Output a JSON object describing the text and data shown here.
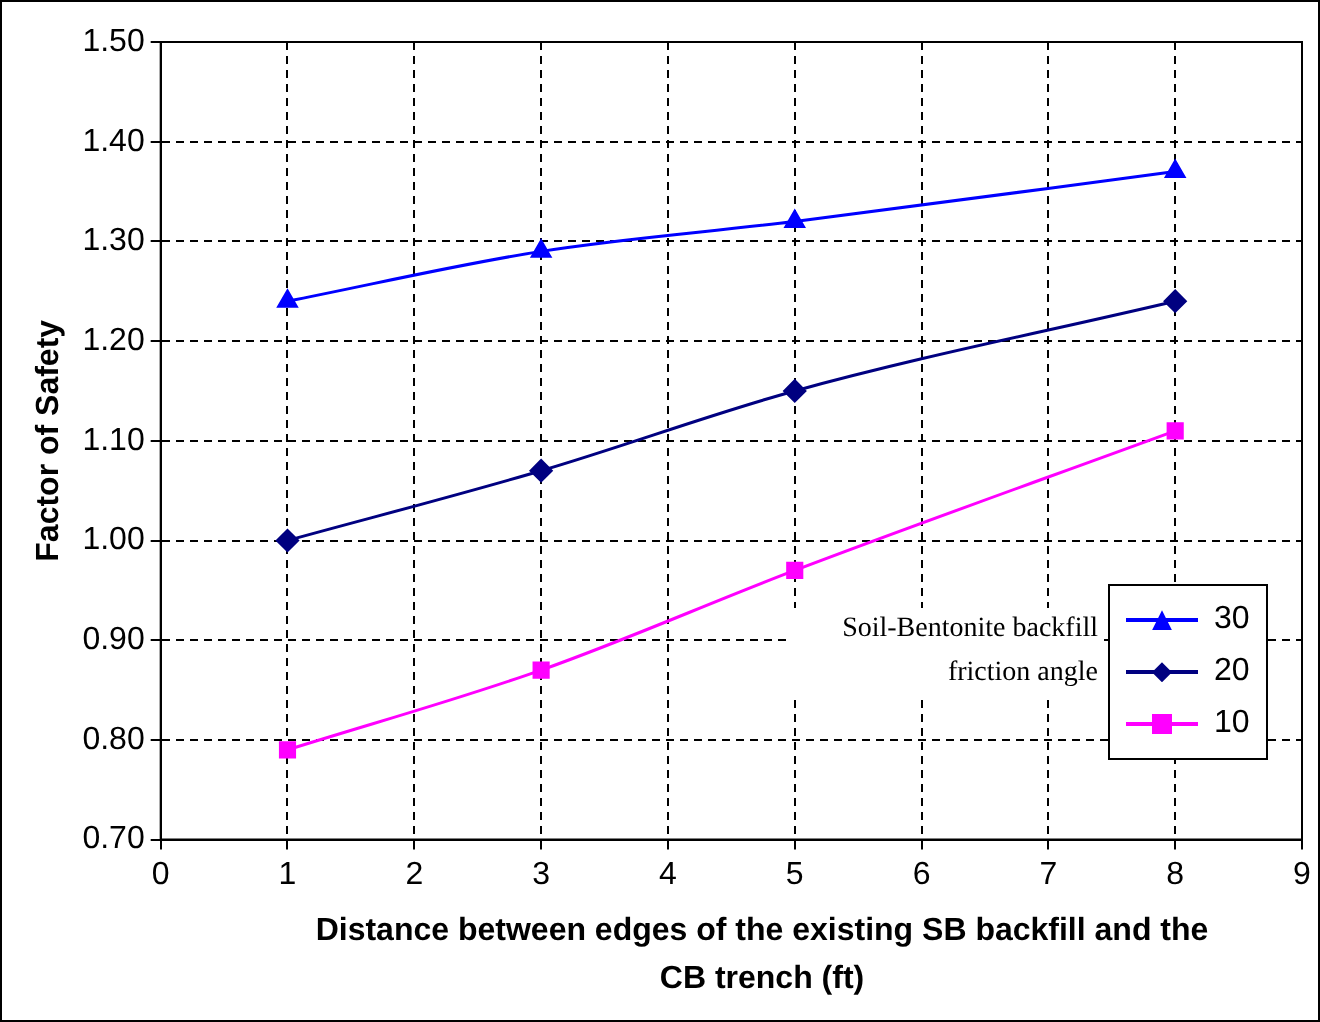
{
  "chart_data": {
    "type": "line",
    "xlabel": "Distance between edges of the existing SB backfill and the CB trench (ft)",
    "ylabel": "Factor of Safety",
    "x": [
      1,
      3,
      5,
      8
    ],
    "series": [
      {
        "name": "30",
        "color": "#0000ff",
        "marker": "triangle",
        "values": [
          1.24,
          1.29,
          1.32,
          1.37
        ]
      },
      {
        "name": "20",
        "color": "#000080",
        "marker": "diamond",
        "values": [
          1.0,
          1.07,
          1.15,
          1.24
        ]
      },
      {
        "name": "10",
        "color": "#ff00ff",
        "marker": "square",
        "values": [
          0.79,
          0.87,
          0.97,
          1.11
        ]
      }
    ],
    "xlim": [
      0,
      9
    ],
    "xticks": [
      0,
      1,
      2,
      3,
      4,
      5,
      6,
      7,
      8,
      9
    ],
    "ylim": [
      0.7,
      1.5
    ],
    "yticks": [
      {
        "value": 0.7,
        "label": "0.70"
      },
      {
        "value": 0.8,
        "label": "0.80"
      },
      {
        "value": 0.9,
        "label": "0.90"
      },
      {
        "value": 1.0,
        "label": "1.00"
      },
      {
        "value": 1.1,
        "label": "1.10"
      },
      {
        "value": 1.2,
        "label": "1.20"
      },
      {
        "value": 1.3,
        "label": "1.30"
      },
      {
        "value": 1.4,
        "label": "1.40"
      },
      {
        "value": 1.5,
        "label": "1.50"
      }
    ],
    "grid": true,
    "line_style": "solid",
    "legend": "bottom right",
    "annotations": [
      "Soil-Bentonite backfill friction angle"
    ]
  }
}
